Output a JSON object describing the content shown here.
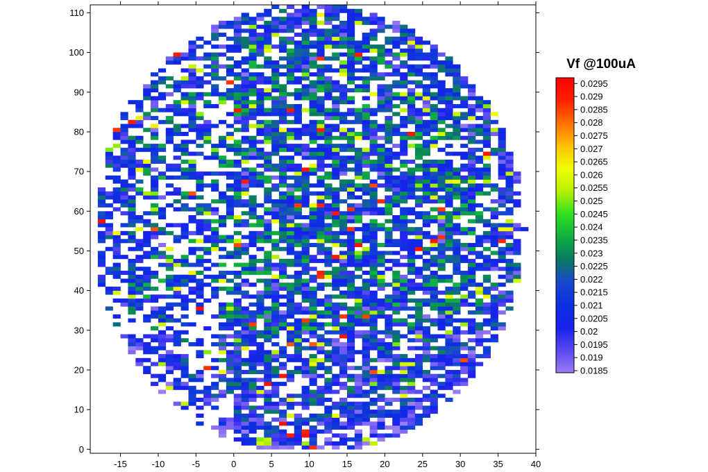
{
  "chart_data": {
    "type": "heatmap",
    "title": "",
    "xlabel": "",
    "ylabel": "",
    "xlim": [
      -19,
      40
    ],
    "ylim": [
      -1,
      112
    ],
    "x_ticks": [
      -15,
      -10,
      -5,
      0,
      5,
      10,
      15,
      20,
      25,
      30,
      35,
      40
    ],
    "y_ticks": [
      0,
      10,
      20,
      30,
      40,
      50,
      60,
      70,
      80,
      90,
      100,
      110
    ],
    "colorbar": {
      "title": "Vf @100uA",
      "min": 0.0185,
      "max": 0.0298,
      "ticks": [
        0.0185,
        0.019,
        0.0195,
        0.02,
        0.0205,
        0.021,
        0.0215,
        0.022,
        0.0225,
        0.023,
        0.0235,
        0.024,
        0.0245,
        0.025,
        0.0255,
        0.026,
        0.0265,
        0.027,
        0.0275,
        0.028,
        0.0285,
        0.029,
        0.0295
      ],
      "tick_labels": [
        "0.0185",
        "0.019",
        "0.0195",
        "0.02",
        "0.0205",
        "0.021",
        "0.0215",
        "0.022",
        "0.0225",
        "0.023",
        "0.0235",
        "0.024",
        "0.0245",
        "0.025",
        "0.0255",
        "0.026",
        "0.0265",
        "0.027",
        "0.0275",
        "0.028",
        "0.0285",
        "0.029",
        "0.0295"
      ],
      "colors": [
        "#9a7cf4",
        "#5848f2",
        "#1820ec",
        "#0c30e0",
        "#1848d0",
        "#0a7a60",
        "#10b040",
        "#30e020",
        "#b8f000",
        "#f0ff00",
        "#ffc000",
        "#ff7000",
        "#ff2000",
        "#ff0000"
      ]
    },
    "wafer": {
      "shape": "circle",
      "center": [
        10,
        55.5
      ],
      "radius_x": 28.5,
      "radius_y": 57,
      "x_range": [
        -18,
        38
      ],
      "y_range": [
        0,
        111
      ],
      "cell_width": 1,
      "cell_height": 1,
      "typical_value": 0.0218,
      "edge_low_value": 0.0205,
      "high_spots_value": 0.0295,
      "missing_fraction": 0.25
    }
  }
}
